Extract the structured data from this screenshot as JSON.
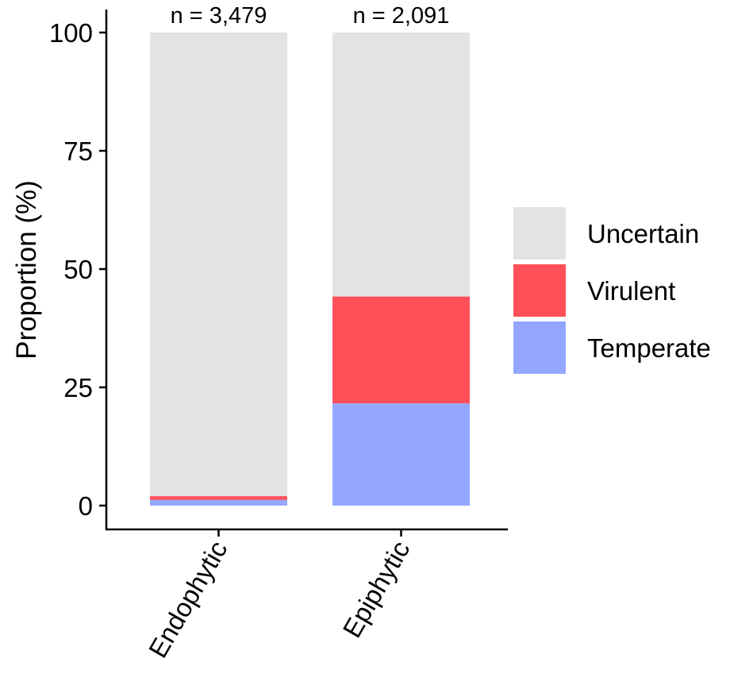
{
  "chart_data": {
    "type": "bar",
    "stacked": true,
    "ylabel": "Proportion (%)",
    "ylim": [
      0,
      100
    ],
    "yticks": [
      0,
      25,
      50,
      75,
      100
    ],
    "categories": [
      "Endophytic",
      "Epiphytic"
    ],
    "counts": [
      "n = 3,479",
      "n = 2,091"
    ],
    "series": [
      {
        "name": "Temperate",
        "color": "#94A7FF",
        "values": [
          1.2,
          21.6
        ]
      },
      {
        "name": "Virulent",
        "color": "#FF5059",
        "values": [
          0.8,
          22.6
        ]
      },
      {
        "name": "Uncertain",
        "color": "#E3E3E3",
        "values": [
          98.0,
          55.8
        ]
      }
    ],
    "legend_order": [
      "Uncertain",
      "Virulent",
      "Temperate"
    ],
    "legend_position": "right",
    "grid": false
  }
}
